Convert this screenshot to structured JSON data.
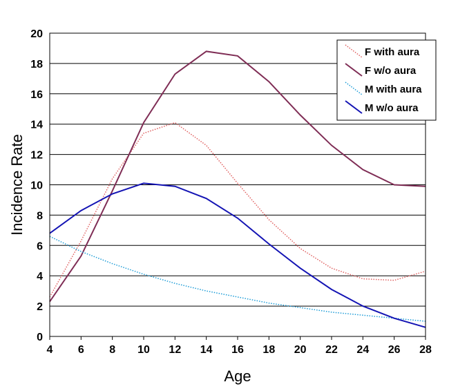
{
  "chart_data": {
    "type": "line",
    "title": "",
    "xlabel": "Age",
    "ylabel": "Incidence Rate",
    "x": [
      4,
      6,
      8,
      10,
      12,
      14,
      16,
      18,
      20,
      22,
      24,
      26,
      28
    ],
    "xlim": [
      4,
      28
    ],
    "ylim": [
      0,
      20
    ],
    "xticks": [
      "4",
      "6",
      "8",
      "10",
      "12",
      "14",
      "16",
      "18",
      "20",
      "22",
      "24",
      "26",
      "28"
    ],
    "yticks": [
      "0",
      "2",
      "4",
      "6",
      "8",
      "10",
      "12",
      "14",
      "16",
      "18",
      "20"
    ],
    "grid": "horizontal",
    "legend_position": "top-right",
    "series": [
      {
        "name": "F with aura",
        "color": "#e06060",
        "style": "dotted",
        "values": [
          2.6,
          6.3,
          10.4,
          13.4,
          14.1,
          12.6,
          10.1,
          7.7,
          5.8,
          4.5,
          3.8,
          3.7,
          4.3
        ]
      },
      {
        "name": "F w/o aura",
        "color": "#7f2d55",
        "style": "solid",
        "values": [
          2.3,
          5.3,
          9.6,
          14.1,
          17.3,
          18.8,
          18.5,
          16.8,
          14.6,
          12.6,
          11.0,
          10.0,
          9.9
        ]
      },
      {
        "name": "M with aura",
        "color": "#1a9bd7",
        "style": "dotted",
        "values": [
          6.6,
          5.6,
          4.8,
          4.1,
          3.5,
          3.0,
          2.6,
          2.2,
          1.9,
          1.6,
          1.4,
          1.2,
          1.0
        ]
      },
      {
        "name": "M w/o aura",
        "color": "#1414b4",
        "style": "solid",
        "values": [
          6.8,
          8.3,
          9.4,
          10.1,
          9.9,
          9.1,
          7.8,
          6.1,
          4.5,
          3.1,
          2.0,
          1.2,
          0.6
        ]
      }
    ]
  }
}
